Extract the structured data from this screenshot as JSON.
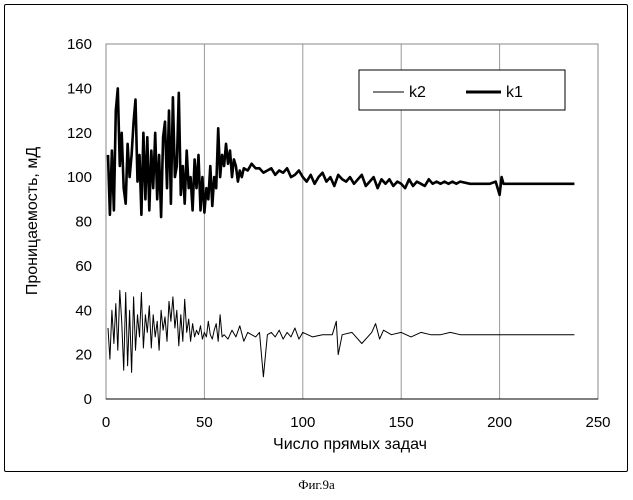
{
  "chart_data": {
    "type": "line",
    "xlabel": "Число прямых задач",
    "ylabel": "Проницаемость, мД",
    "xlim": [
      0,
      250
    ],
    "ylim": [
      0,
      160
    ],
    "xticks": [
      0,
      50,
      100,
      150,
      200,
      250
    ],
    "yticks": [
      0,
      20,
      40,
      60,
      80,
      100,
      120,
      140,
      160
    ],
    "grid": "vertical",
    "legend_position": "top-right",
    "series": [
      {
        "name": "k2",
        "style": "thin",
        "x": [
          1,
          2,
          3,
          4,
          5,
          6,
          7,
          8,
          9,
          10,
          11,
          12,
          13,
          14,
          15,
          16,
          17,
          18,
          19,
          20,
          21,
          22,
          23,
          24,
          25,
          26,
          27,
          28,
          29,
          30,
          31,
          32,
          33,
          34,
          35,
          36,
          37,
          38,
          39,
          40,
          41,
          42,
          43,
          44,
          45,
          46,
          47,
          48,
          49,
          50,
          51,
          52,
          53,
          54,
          55,
          56,
          57,
          58,
          59,
          60,
          62,
          64,
          66,
          68,
          70,
          72,
          74,
          76,
          78,
          80,
          82,
          84,
          86,
          88,
          90,
          92,
          94,
          96,
          98,
          100,
          105,
          110,
          115,
          117,
          118,
          120,
          125,
          130,
          135,
          137,
          139,
          141,
          145,
          150,
          155,
          160,
          165,
          170,
          175,
          180,
          190,
          200,
          210,
          220,
          230,
          238
        ],
        "y": [
          32,
          18,
          40,
          25,
          43,
          22,
          49,
          35,
          13,
          48,
          15,
          40,
          12,
          46,
          22,
          38,
          28,
          48,
          23,
          38,
          30,
          42,
          23,
          38,
          28,
          35,
          22,
          40,
          31,
          37,
          26,
          44,
          35,
          46,
          32,
          40,
          24,
          38,
          26,
          45,
          30,
          36,
          26,
          34,
          28,
          31,
          29,
          33,
          27,
          30,
          28,
          35,
          29,
          27,
          31,
          34,
          26,
          38,
          28,
          29,
          27,
          31,
          28,
          33,
          26,
          30,
          29,
          28,
          30,
          10,
          29,
          30,
          28,
          31,
          27,
          30,
          28,
          32,
          27,
          30,
          28,
          29,
          29,
          35,
          20,
          29,
          30,
          25,
          30,
          34,
          27,
          31,
          29,
          30,
          28,
          30,
          29,
          29,
          30,
          29,
          29,
          29,
          29,
          29,
          29,
          29
        ]
      },
      {
        "name": "k1",
        "style": "thick",
        "x": [
          1,
          2,
          3,
          4,
          5,
          6,
          7,
          8,
          9,
          10,
          11,
          12,
          13,
          14,
          15,
          16,
          17,
          18,
          19,
          20,
          21,
          22,
          23,
          24,
          25,
          26,
          27,
          28,
          29,
          30,
          31,
          32,
          33,
          34,
          35,
          36,
          37,
          38,
          39,
          40,
          41,
          42,
          43,
          44,
          45,
          46,
          47,
          48,
          49,
          50,
          51,
          52,
          53,
          54,
          55,
          56,
          57,
          58,
          59,
          60,
          61,
          62,
          63,
          64,
          65,
          66,
          67,
          68,
          69,
          70,
          72,
          74,
          76,
          78,
          80,
          82,
          84,
          86,
          88,
          90,
          92,
          94,
          96,
          98,
          100,
          102,
          104,
          106,
          108,
          110,
          112,
          114,
          116,
          118,
          120,
          122,
          124,
          126,
          128,
          130,
          132,
          134,
          136,
          138,
          140,
          142,
          144,
          146,
          148,
          150,
          152,
          154,
          156,
          158,
          160,
          162,
          164,
          166,
          168,
          170,
          172,
          174,
          176,
          178,
          180,
          185,
          190,
          195,
          198,
          200,
          201,
          202,
          205,
          210,
          220,
          230,
          238
        ],
        "y": [
          110,
          83,
          112,
          85,
          130,
          140,
          105,
          120,
          95,
          88,
          115,
          100,
          110,
          125,
          135,
          98,
          110,
          83,
          120,
          90,
          118,
          85,
          112,
          95,
          120,
          90,
          110,
          82,
          118,
          125,
          95,
          130,
          88,
          136,
          100,
          105,
          138,
          92,
          105,
          88,
          112,
          95,
          100,
          85,
          108,
          95,
          110,
          85,
          100,
          84,
          95,
          90,
          105,
          87,
          100,
          95,
          122,
          100,
          110,
          105,
          115,
          106,
          112,
          100,
          108,
          105,
          98,
          103,
          100,
          104,
          103,
          106,
          104,
          104,
          102,
          103,
          104,
          101,
          103,
          102,
          104,
          100,
          101,
          103,
          100,
          98,
          101,
          97,
          100,
          102,
          98,
          100,
          96,
          101,
          99,
          98,
          100,
          97,
          99,
          101,
          96,
          98,
          100,
          95,
          99,
          97,
          99,
          96,
          98,
          97,
          95,
          99,
          96,
          98,
          97,
          96,
          99,
          97,
          98,
          97,
          98,
          97,
          98,
          97,
          98,
          97,
          97,
          97,
          98,
          92,
          100,
          97,
          97,
          97,
          97,
          97,
          97
        ]
      }
    ]
  },
  "caption": "Фиг.9а"
}
